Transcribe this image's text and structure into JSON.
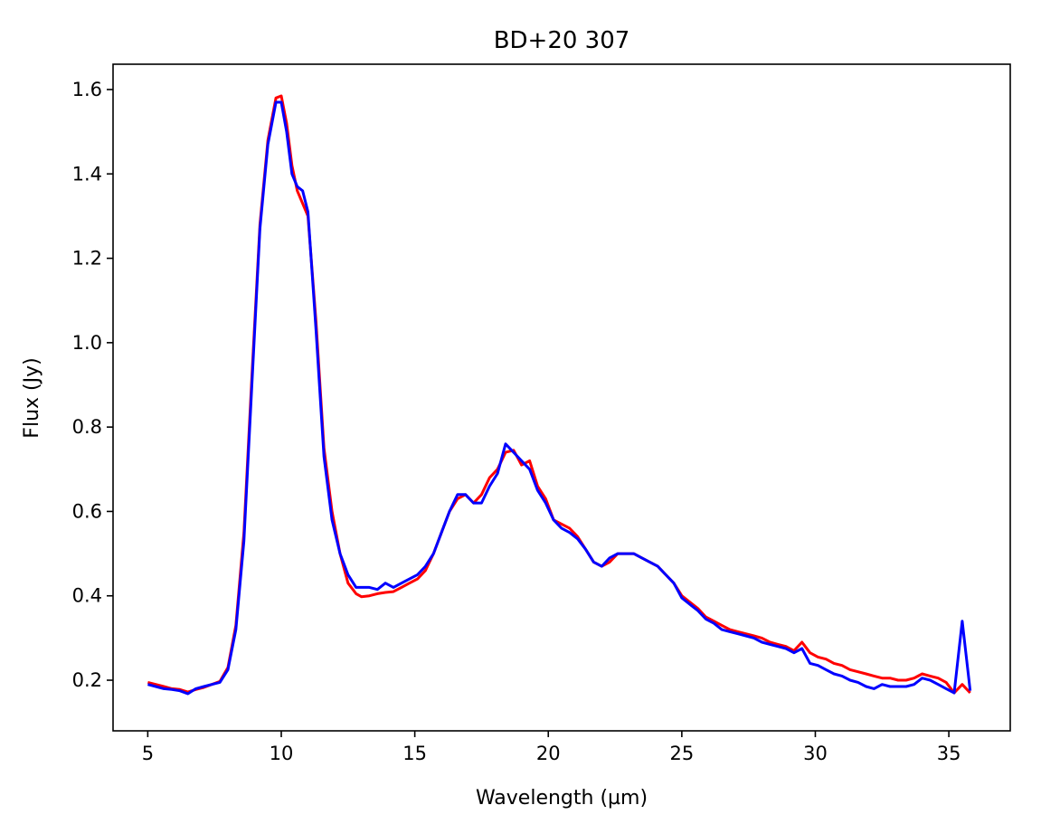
{
  "chart_data": {
    "type": "line",
    "title": "BD+20 307",
    "xlabel": "Wavelength (µm)",
    "ylabel": "Flux (Jy)",
    "xlim": [
      3.7,
      37.3
    ],
    "ylim": [
      0.08,
      1.66
    ],
    "xticks": [
      5,
      10,
      15,
      20,
      25,
      30,
      35
    ],
    "yticks": [
      0.2,
      0.4,
      0.6,
      0.8,
      1.0,
      1.2,
      1.4,
      1.6
    ],
    "xtick_labels": [
      "5",
      "10",
      "15",
      "20",
      "25",
      "30",
      "35"
    ],
    "ytick_labels": [
      "0.2",
      "0.4",
      "0.6",
      "0.8",
      "1.0",
      "1.2",
      "1.4",
      "1.6"
    ],
    "grid": false,
    "series": [
      {
        "name": "spectrum-red",
        "color": "#ff0000",
        "x": [
          5.0,
          5.3,
          5.6,
          5.9,
          6.2,
          6.5,
          6.8,
          7.1,
          7.4,
          7.7,
          8.0,
          8.3,
          8.6,
          8.9,
          9.2,
          9.5,
          9.8,
          10.0,
          10.2,
          10.4,
          10.6,
          10.8,
          11.0,
          11.3,
          11.6,
          11.9,
          12.2,
          12.5,
          12.8,
          13.0,
          13.3,
          13.6,
          13.9,
          14.2,
          14.5,
          14.8,
          15.1,
          15.4,
          15.7,
          16.0,
          16.3,
          16.6,
          16.9,
          17.2,
          17.5,
          17.8,
          18.1,
          18.4,
          18.7,
          19.0,
          19.3,
          19.6,
          19.9,
          20.2,
          20.5,
          20.8,
          21.1,
          21.4,
          21.7,
          22.0,
          22.3,
          22.6,
          22.9,
          23.2,
          23.5,
          23.8,
          24.1,
          24.4,
          24.7,
          25.0,
          25.3,
          25.6,
          25.9,
          26.2,
          26.5,
          26.8,
          27.1,
          27.4,
          27.7,
          28.0,
          28.3,
          28.6,
          28.9,
          29.2,
          29.5,
          29.8,
          30.1,
          30.4,
          30.7,
          31.0,
          31.3,
          31.6,
          31.9,
          32.2,
          32.5,
          32.8,
          33.1,
          33.4,
          33.7,
          34.0,
          34.3,
          34.6,
          34.9,
          35.2,
          35.5,
          35.8
        ],
        "y": [
          0.195,
          0.19,
          0.185,
          0.18,
          0.178,
          0.172,
          0.178,
          0.183,
          0.19,
          0.197,
          0.23,
          0.33,
          0.55,
          0.92,
          1.28,
          1.48,
          1.58,
          1.585,
          1.52,
          1.42,
          1.36,
          1.33,
          1.3,
          1.05,
          0.75,
          0.6,
          0.5,
          0.43,
          0.405,
          0.398,
          0.4,
          0.405,
          0.408,
          0.41,
          0.42,
          0.43,
          0.44,
          0.46,
          0.5,
          0.55,
          0.6,
          0.63,
          0.64,
          0.62,
          0.64,
          0.68,
          0.7,
          0.74,
          0.745,
          0.71,
          0.72,
          0.66,
          0.63,
          0.58,
          0.57,
          0.56,
          0.54,
          0.51,
          0.48,
          0.47,
          0.48,
          0.5,
          0.5,
          0.5,
          0.49,
          0.48,
          0.47,
          0.45,
          0.43,
          0.4,
          0.385,
          0.37,
          0.35,
          0.34,
          0.33,
          0.32,
          0.315,
          0.31,
          0.305,
          0.3,
          0.29,
          0.285,
          0.28,
          0.27,
          0.29,
          0.265,
          0.255,
          0.25,
          0.24,
          0.235,
          0.225,
          0.22,
          0.215,
          0.21,
          0.205,
          0.205,
          0.2,
          0.2,
          0.205,
          0.215,
          0.21,
          0.205,
          0.195,
          0.17,
          0.19,
          0.17
        ]
      },
      {
        "name": "spectrum-blue",
        "color": "#0000ff",
        "x": [
          5.0,
          5.3,
          5.6,
          5.9,
          6.2,
          6.5,
          6.8,
          7.1,
          7.4,
          7.7,
          8.0,
          8.3,
          8.6,
          8.9,
          9.2,
          9.5,
          9.8,
          10.0,
          10.2,
          10.4,
          10.6,
          10.8,
          11.0,
          11.3,
          11.6,
          11.9,
          12.2,
          12.5,
          12.8,
          13.0,
          13.3,
          13.6,
          13.9,
          14.2,
          14.5,
          14.8,
          15.1,
          15.4,
          15.7,
          16.0,
          16.3,
          16.6,
          16.9,
          17.2,
          17.5,
          17.8,
          18.1,
          18.4,
          18.7,
          19.0,
          19.3,
          19.6,
          19.9,
          20.2,
          20.5,
          20.8,
          21.1,
          21.4,
          21.7,
          22.0,
          22.3,
          22.6,
          22.9,
          23.2,
          23.5,
          23.8,
          24.1,
          24.4,
          24.7,
          25.0,
          25.3,
          25.6,
          25.9,
          26.2,
          26.5,
          26.8,
          27.1,
          27.4,
          27.7,
          28.0,
          28.3,
          28.6,
          28.9,
          29.2,
          29.5,
          29.8,
          30.1,
          30.4,
          30.7,
          31.0,
          31.3,
          31.6,
          31.9,
          32.2,
          32.5,
          32.8,
          33.1,
          33.4,
          33.7,
          34.0,
          34.3,
          34.6,
          34.9,
          35.2,
          35.5,
          35.8
        ],
        "y": [
          0.19,
          0.185,
          0.18,
          0.178,
          0.175,
          0.168,
          0.18,
          0.185,
          0.19,
          0.195,
          0.225,
          0.32,
          0.53,
          0.9,
          1.27,
          1.47,
          1.57,
          1.57,
          1.5,
          1.4,
          1.37,
          1.36,
          1.31,
          1.03,
          0.73,
          0.58,
          0.5,
          0.45,
          0.42,
          0.42,
          0.42,
          0.415,
          0.43,
          0.42,
          0.43,
          0.44,
          0.45,
          0.47,
          0.5,
          0.55,
          0.6,
          0.64,
          0.64,
          0.62,
          0.62,
          0.66,
          0.69,
          0.76,
          0.74,
          0.72,
          0.7,
          0.65,
          0.62,
          0.58,
          0.56,
          0.55,
          0.535,
          0.51,
          0.48,
          0.47,
          0.49,
          0.5,
          0.5,
          0.5,
          0.49,
          0.48,
          0.47,
          0.45,
          0.43,
          0.395,
          0.38,
          0.365,
          0.345,
          0.335,
          0.32,
          0.315,
          0.31,
          0.305,
          0.3,
          0.29,
          0.285,
          0.28,
          0.275,
          0.265,
          0.275,
          0.24,
          0.235,
          0.225,
          0.215,
          0.21,
          0.2,
          0.195,
          0.185,
          0.18,
          0.19,
          0.185,
          0.185,
          0.185,
          0.19,
          0.205,
          0.2,
          0.19,
          0.18,
          0.17,
          0.34,
          0.175
        ]
      }
    ]
  }
}
